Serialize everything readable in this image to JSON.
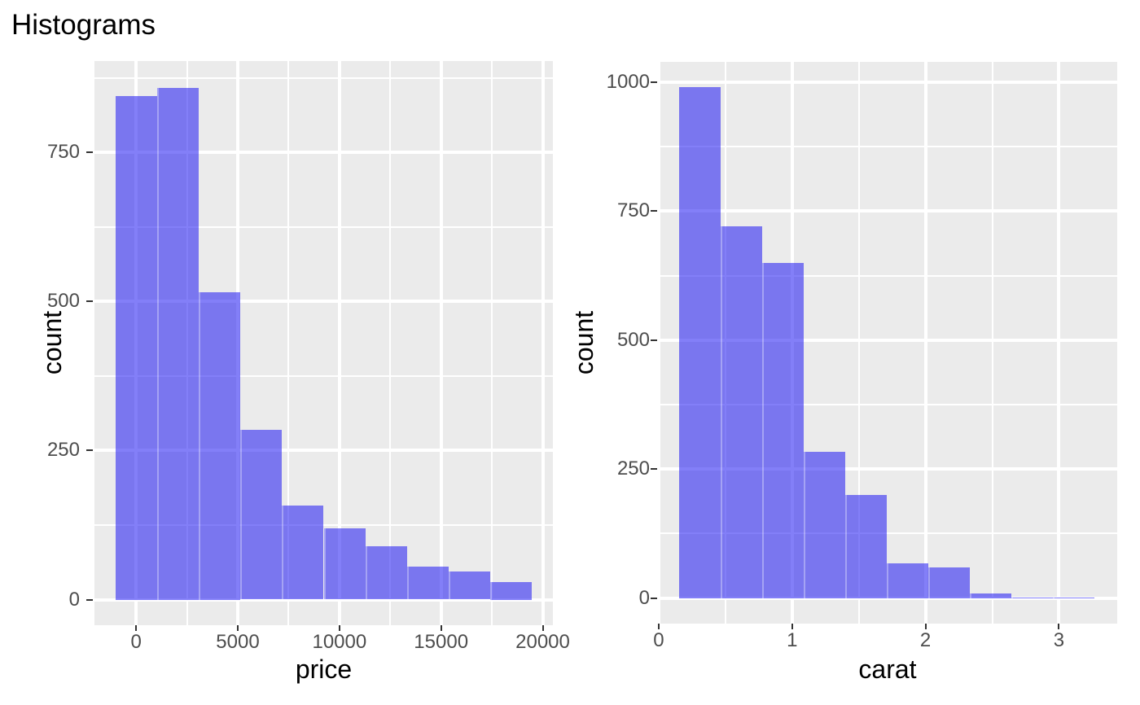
{
  "title": "Histograms",
  "style": {
    "figure_background": "#FFFFFF",
    "panel_background": "#EBEBEB",
    "gridline_color": "#FFFFFF",
    "bar_fill": "rgba(30,22,243,0.55)",
    "bar_fill_apparent_on_panel": "#7B76EE",
    "tick_mark_color": "#333333",
    "tick_label_color": "#4D4D4D",
    "title_color": "#000000",
    "axis_title_color": "#000000"
  },
  "chart_data": [
    {
      "type": "bar",
      "subtype": "histogram",
      "name": "price-histogram",
      "title": "",
      "xlabel": "price",
      "ylabel": "count",
      "legend": "none",
      "grid": true,
      "bin_edges": [
        -1025,
        1025,
        3075,
        5125,
        7175,
        9225,
        11275,
        13325,
        15375,
        17425,
        19475
      ],
      "counts": [
        845,
        858,
        516,
        285,
        158,
        120,
        90,
        55,
        47,
        30
      ],
      "x_ticks": [
        {
          "value": 0,
          "label": "0"
        },
        {
          "value": 5000,
          "label": "5000"
        },
        {
          "value": 10000,
          "label": "10000"
        },
        {
          "value": 15000,
          "label": "15000"
        },
        {
          "value": 20000,
          "label": "20000"
        }
      ],
      "y_ticks": [
        {
          "value": 0,
          "label": "0"
        },
        {
          "value": 250,
          "label": "250"
        },
        {
          "value": 500,
          "label": "500"
        },
        {
          "value": 750,
          "label": "750"
        }
      ],
      "x_minor": [
        2500,
        7500,
        12500,
        17500
      ],
      "y_minor": [
        125,
        375,
        625,
        875
      ],
      "xlim": [
        -2050,
        20500
      ],
      "ylim": [
        -43,
        903
      ]
    },
    {
      "type": "bar",
      "subtype": "histogram",
      "name": "carat-histogram",
      "title": "",
      "xlabel": "carat",
      "ylabel": "count",
      "legend": "none",
      "grid": true,
      "bin_edges": [
        0.15,
        0.4615,
        0.773,
        1.0845,
        1.396,
        1.7075,
        2.019,
        2.3305,
        2.642,
        2.9535,
        3.265
      ],
      "counts": [
        990,
        721,
        650,
        283,
        200,
        68,
        60,
        9,
        1,
        1
      ],
      "x_ticks": [
        {
          "value": 0,
          "label": "0"
        },
        {
          "value": 1,
          "label": "1"
        },
        {
          "value": 2,
          "label": "2"
        },
        {
          "value": 3,
          "label": "3"
        }
      ],
      "y_ticks": [
        {
          "value": 0,
          "label": "0"
        },
        {
          "value": 250,
          "label": "250"
        },
        {
          "value": 500,
          "label": "500"
        },
        {
          "value": 750,
          "label": "750"
        },
        {
          "value": 1000,
          "label": "1000"
        }
      ],
      "x_minor": [
        0.5,
        1.5,
        2.5
      ],
      "y_minor": [
        125,
        375,
        625,
        875
      ],
      "xlim": [
        -0.006,
        3.437
      ],
      "ylim": [
        -49.5,
        1039.5
      ]
    }
  ]
}
